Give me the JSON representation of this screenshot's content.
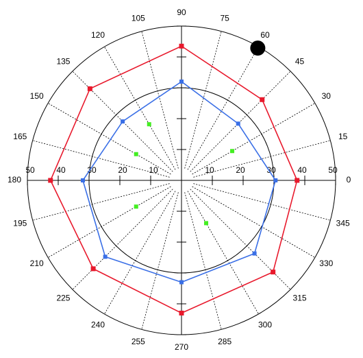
{
  "chart_data": {
    "type": "polar",
    "rlim": [
      0,
      50
    ],
    "rticks": [
      10,
      20,
      30,
      40,
      50
    ],
    "rgrid": [
      30
    ],
    "thetaticks": [
      0,
      15,
      30,
      45,
      60,
      75,
      90,
      105,
      120,
      135,
      150,
      165,
      180,
      195,
      210,
      225,
      240,
      255,
      270,
      285,
      300,
      315,
      330,
      345
    ],
    "series": [
      {
        "color": "#e8192c",
        "mode": "lines+markers",
        "marker_size": 7,
        "theta": [
          0,
          45,
          90,
          135,
          180,
          225,
          270,
          315
        ],
        "r": [
          37.5,
          37,
          43.5,
          42,
          42.5,
          40.5,
          43,
          42
        ]
      },
      {
        "color": "#3a6fe6",
        "mode": "lines+markers",
        "marker_size": 6,
        "theta": [
          0,
          45,
          90,
          135,
          180,
          225,
          270,
          315
        ],
        "r": [
          30.5,
          26,
          32,
          27,
          32,
          35,
          33,
          33.5
        ]
      },
      {
        "color": "#44ee22",
        "mode": "markers",
        "marker_size": 6,
        "theta": [
          30,
          120,
          150,
          210,
          300
        ],
        "r": [
          19,
          21,
          17,
          17,
          16
        ]
      },
      {
        "color": "#000000",
        "mode": "circle",
        "marker_size": 22,
        "theta": [
          60
        ],
        "r": [
          49.5
        ]
      }
    ]
  }
}
